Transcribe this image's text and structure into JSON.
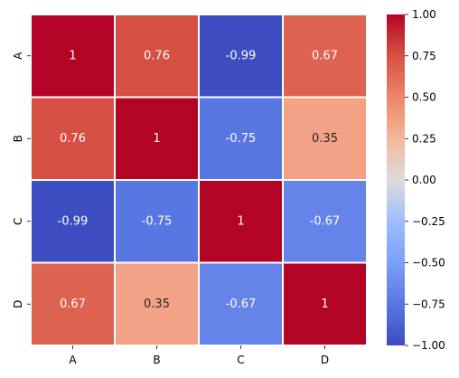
{
  "chart_data": {
    "type": "heatmap",
    "title": "",
    "xlabel": "",
    "ylabel": "",
    "x_categories": [
      "A",
      "B",
      "C",
      "D"
    ],
    "y_categories": [
      "A",
      "B",
      "C",
      "D"
    ],
    "values": [
      [
        1,
        0.76,
        -0.99,
        0.67
      ],
      [
        0.76,
        1,
        -0.75,
        0.35
      ],
      [
        -0.99,
        -0.75,
        1,
        -0.67
      ],
      [
        0.67,
        0.35,
        -0.67,
        1
      ]
    ],
    "value_labels": [
      [
        "1",
        "0.76",
        "-0.99",
        "0.67"
      ],
      [
        "0.76",
        "1",
        "-0.75",
        "0.35"
      ],
      [
        "-0.99",
        "-0.75",
        "1",
        "-0.67"
      ],
      [
        "0.67",
        "0.35",
        "-0.67",
        "1"
      ]
    ],
    "colormap": "coolwarm",
    "vmin": -1,
    "vmax": 1,
    "colorbar": {
      "ticks": [
        1.0,
        0.75,
        0.5,
        0.25,
        0.0,
        -0.25,
        -0.5,
        -0.75,
        -1.0
      ],
      "tick_labels": [
        "1.00",
        "0.75",
        "0.50",
        "0.25",
        "0.00",
        "−0.25",
        "−0.50",
        "−0.75",
        "−1.00"
      ]
    },
    "annotated": true,
    "grid": false
  }
}
